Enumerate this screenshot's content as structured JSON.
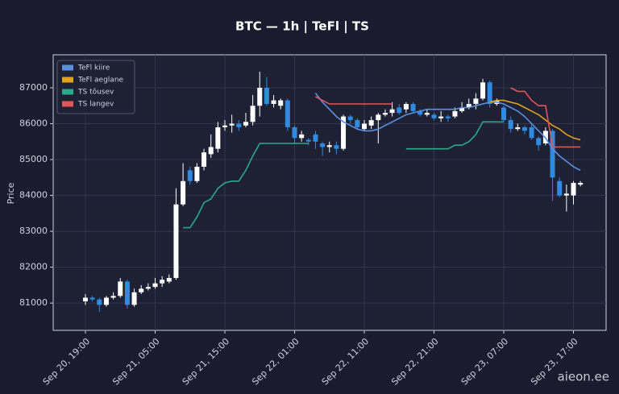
{
  "chart_data": {
    "type": "candlestick",
    "title": "BTC — 1h  |  TeFl  |  TS",
    "y_label": "Price",
    "watermark": "aieon.ee",
    "x": [
      "Sep 20, 19:00",
      "Sep 20, 20:00",
      "Sep 20, 21:00",
      "Sep 20, 22:00",
      "Sep 20, 23:00",
      "Sep 21, 00:00",
      "Sep 21, 01:00",
      "Sep 21, 02:00",
      "Sep 21, 03:00",
      "Sep 21, 04:00",
      "Sep 21, 05:00",
      "Sep 21, 06:00",
      "Sep 21, 07:00",
      "Sep 21, 08:00",
      "Sep 21, 09:00",
      "Sep 21, 10:00",
      "Sep 21, 11:00",
      "Sep 21, 12:00",
      "Sep 21, 13:00",
      "Sep 21, 14:00",
      "Sep 21, 15:00",
      "Sep 21, 16:00",
      "Sep 21, 17:00",
      "Sep 21, 18:00",
      "Sep 21, 19:00",
      "Sep 21, 20:00",
      "Sep 21, 21:00",
      "Sep 21, 22:00",
      "Sep 21, 23:00",
      "Sep 22, 00:00",
      "Sep 22, 01:00",
      "Sep 22, 02:00",
      "Sep 22, 03:00",
      "Sep 22, 04:00",
      "Sep 22, 05:00",
      "Sep 22, 06:00",
      "Sep 22, 07:00",
      "Sep 22, 08:00",
      "Sep 22, 09:00",
      "Sep 22, 10:00",
      "Sep 22, 11:00",
      "Sep 22, 12:00",
      "Sep 22, 13:00",
      "Sep 22, 14:00",
      "Sep 22, 15:00",
      "Sep 22, 16:00",
      "Sep 22, 17:00",
      "Sep 22, 18:00",
      "Sep 22, 19:00",
      "Sep 22, 20:00",
      "Sep 22, 21:00",
      "Sep 22, 22:00",
      "Sep 22, 23:00",
      "Sep 23, 00:00",
      "Sep 23, 01:00",
      "Sep 23, 02:00",
      "Sep 23, 03:00",
      "Sep 23, 04:00",
      "Sep 23, 05:00",
      "Sep 23, 06:00",
      "Sep 23, 07:00",
      "Sep 23, 08:00",
      "Sep 23, 09:00",
      "Sep 23, 10:00",
      "Sep 23, 11:00",
      "Sep 23, 12:00",
      "Sep 23, 13:00",
      "Sep 23, 14:00",
      "Sep 23, 15:00",
      "Sep 23, 16:00",
      "Sep 23, 17:00",
      "Sep 23, 18:00"
    ],
    "open": [
      81050,
      81150,
      81100,
      80950,
      81150,
      81200,
      81600,
      80950,
      81300,
      81400,
      81450,
      81550,
      81600,
      81700,
      83750,
      84700,
      84400,
      84800,
      85150,
      85300,
      85900,
      85950,
      86000,
      85950,
      86050,
      86500,
      87000,
      86550,
      86500,
      86650,
      85900,
      85600,
      85550,
      85700,
      85450,
      85350,
      85400,
      85300,
      86200,
      86100,
      85850,
      85950,
      86100,
      86250,
      86300,
      86450,
      86400,
      86550,
      86350,
      86250,
      86250,
      86150,
      86200,
      86200,
      86350,
      86450,
      86550,
      86700,
      87150,
      86550,
      86450,
      86100,
      85850,
      85900,
      85900,
      85600,
      85450,
      85800,
      84400,
      84000,
      84000,
      84300
    ],
    "high": [
      81250,
      81200,
      81150,
      81200,
      81300,
      81700,
      81650,
      81400,
      81500,
      81550,
      81700,
      81750,
      81800,
      84200,
      84900,
      84800,
      84900,
      85300,
      85700,
      86050,
      86100,
      86250,
      86100,
      86300,
      86800,
      87450,
      87300,
      86800,
      86700,
      86700,
      85950,
      85800,
      85600,
      85800,
      85500,
      85500,
      85500,
      86250,
      86250,
      86150,
      86100,
      86200,
      86300,
      86400,
      86600,
      86550,
      86600,
      86600,
      86400,
      86400,
      86300,
      86350,
      86250,
      86450,
      86600,
      86700,
      86850,
      87250,
      87200,
      86700,
      86500,
      86200,
      86000,
      85950,
      86000,
      85650,
      85900,
      85850,
      84500,
      84300,
      84400,
      84400
    ],
    "low": [
      80950,
      81050,
      80750,
      80900,
      81100,
      81150,
      80850,
      80900,
      81250,
      81350,
      81400,
      81450,
      81550,
      81650,
      83700,
      84300,
      84350,
      84700,
      85050,
      85200,
      85800,
      85750,
      85800,
      85900,
      85950,
      86200,
      86500,
      86450,
      86400,
      85800,
      85450,
      85500,
      85400,
      85300,
      85100,
      85200,
      85150,
      85250,
      86000,
      85850,
      85800,
      85850,
      85450,
      86200,
      86200,
      86250,
      86300,
      86300,
      86200,
      86200,
      86100,
      86050,
      86050,
      86150,
      86300,
      86400,
      86400,
      86650,
      86450,
      86500,
      86050,
      85750,
      85800,
      85700,
      85550,
      85250,
      85400,
      83850,
      83950,
      83550,
      83750,
      84250
    ],
    "close": [
      81150,
      81100,
      80950,
      81150,
      81200,
      81600,
      80950,
      81300,
      81400,
      81450,
      81550,
      81650,
      81700,
      83750,
      84400,
      84400,
      84800,
      85200,
      85350,
      85900,
      85950,
      86000,
      85900,
      86050,
      86500,
      87000,
      86550,
      86650,
      86650,
      85900,
      85600,
      85700,
      85500,
      85500,
      85350,
      85400,
      85300,
      86200,
      86100,
      85900,
      86000,
      86100,
      86250,
      86300,
      86400,
      86300,
      86550,
      86350,
      86250,
      86300,
      86150,
      86200,
      86150,
      86350,
      86450,
      86550,
      86700,
      87150,
      86550,
      86650,
      86100,
      85850,
      85900,
      85800,
      85600,
      85400,
      85800,
      84500,
      84000,
      84050,
      84350,
      84350
    ],
    "up_color": "#ffffff",
    "down_color": "#2f8ae0",
    "lines": [
      {
        "name": "TeFl kiire",
        "color": "#5b8fe0",
        "values": [
          null,
          null,
          null,
          null,
          null,
          null,
          null,
          null,
          null,
          null,
          null,
          null,
          null,
          null,
          null,
          null,
          null,
          null,
          null,
          null,
          null,
          null,
          null,
          null,
          null,
          null,
          null,
          null,
          null,
          null,
          null,
          null,
          null,
          86850,
          86600,
          86400,
          86200,
          86050,
          85950,
          85850,
          85800,
          85800,
          85850,
          85950,
          86050,
          86150,
          86250,
          86300,
          86350,
          86400,
          86400,
          86400,
          86400,
          86400,
          86450,
          86450,
          86500,
          86550,
          86600,
          86600,
          86550,
          86450,
          86350,
          86200,
          86000,
          85800,
          85600,
          85300,
          85100,
          84950,
          84800,
          84700
        ]
      },
      {
        "name": "TeFl aeglane",
        "color": "#e0a020",
        "values": [
          null,
          null,
          null,
          null,
          null,
          null,
          null,
          null,
          null,
          null,
          null,
          null,
          null,
          null,
          null,
          null,
          null,
          null,
          null,
          null,
          null,
          null,
          null,
          null,
          null,
          null,
          null,
          null,
          null,
          null,
          null,
          null,
          null,
          null,
          null,
          null,
          null,
          null,
          null,
          null,
          null,
          null,
          null,
          null,
          null,
          null,
          null,
          null,
          null,
          null,
          null,
          null,
          null,
          null,
          null,
          null,
          null,
          null,
          86600,
          86650,
          86650,
          86600,
          86550,
          86450,
          86350,
          86250,
          86100,
          85950,
          85850,
          85700,
          85600,
          85550
        ]
      },
      {
        "name": "TS tõusev",
        "color": "#2aa98a",
        "values": [
          null,
          null,
          null,
          null,
          null,
          null,
          null,
          null,
          null,
          null,
          null,
          null,
          null,
          null,
          83100,
          83100,
          83400,
          83800,
          83900,
          84200,
          84350,
          84400,
          84400,
          84700,
          85100,
          85450,
          85450,
          85450,
          85450,
          85450,
          85450,
          85450,
          85450,
          null,
          null,
          null,
          null,
          null,
          null,
          null,
          null,
          null,
          null,
          null,
          null,
          null,
          85300,
          85300,
          85300,
          85300,
          85300,
          85300,
          85300,
          85400,
          85400,
          85500,
          85700,
          86050,
          86050,
          86050,
          86050,
          null,
          null,
          null,
          null,
          null,
          null,
          null,
          null,
          null,
          null,
          null
        ]
      },
      {
        "name": "TS langev",
        "color": "#e05555",
        "values": [
          null,
          null,
          null,
          null,
          null,
          null,
          null,
          null,
          null,
          null,
          null,
          null,
          null,
          null,
          null,
          null,
          null,
          null,
          null,
          null,
          null,
          null,
          null,
          null,
          null,
          null,
          null,
          null,
          null,
          null,
          null,
          null,
          null,
          86750,
          86650,
          86550,
          86550,
          86550,
          86550,
          86550,
          86550,
          86550,
          86550,
          86550,
          86550,
          null,
          null,
          null,
          null,
          null,
          null,
          null,
          null,
          null,
          null,
          null,
          null,
          null,
          null,
          null,
          null,
          87000,
          86900,
          86900,
          86650,
          86500,
          86500,
          85350,
          85350,
          85350,
          85350,
          85350
        ]
      }
    ],
    "ylim": [
      80240,
      87920
    ],
    "yticks": [
      81000,
      82000,
      83000,
      84000,
      85000,
      86000,
      87000
    ],
    "xticks": [
      "Sep 20, 19:00",
      "Sep 21, 05:00",
      "Sep 21, 15:00",
      "Sep 22, 01:00",
      "Sep 22, 11:00",
      "Sep 22, 21:00",
      "Sep 23, 07:00",
      "Sep 23, 17:00"
    ],
    "grid": true,
    "legend": "upper left"
  }
}
